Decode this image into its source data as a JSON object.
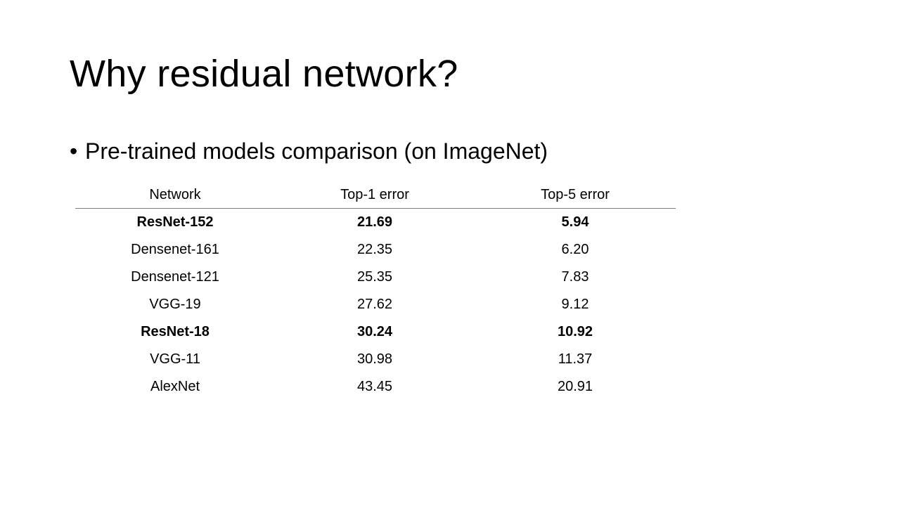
{
  "slide": {
    "title": "Why residual network?",
    "bullet_symbol": "•",
    "bullet_text": "Pre-trained models comparison (on ImageNet)"
  },
  "table": {
    "headers": [
      "Network",
      "Top-1 error",
      "Top-5 error"
    ],
    "rows": [
      {
        "network": "ResNet-152",
        "top1": "21.69",
        "top5": "5.94",
        "bold": true
      },
      {
        "network": "Densenet-161",
        "top1": "22.35",
        "top5": "6.20",
        "bold": false
      },
      {
        "network": "Densenet-121",
        "top1": "25.35",
        "top5": "7.83",
        "bold": false
      },
      {
        "network": "VGG-19",
        "top1": "27.62",
        "top5": "9.12",
        "bold": false
      },
      {
        "network": "ResNet-18",
        "top1": "30.24",
        "top5": "10.92",
        "bold": true
      },
      {
        "network": "VGG-11",
        "top1": "30.98",
        "top5": "11.37",
        "bold": false
      },
      {
        "network": "AlexNet",
        "top1": "43.45",
        "top5": "20.91",
        "bold": false
      }
    ]
  }
}
